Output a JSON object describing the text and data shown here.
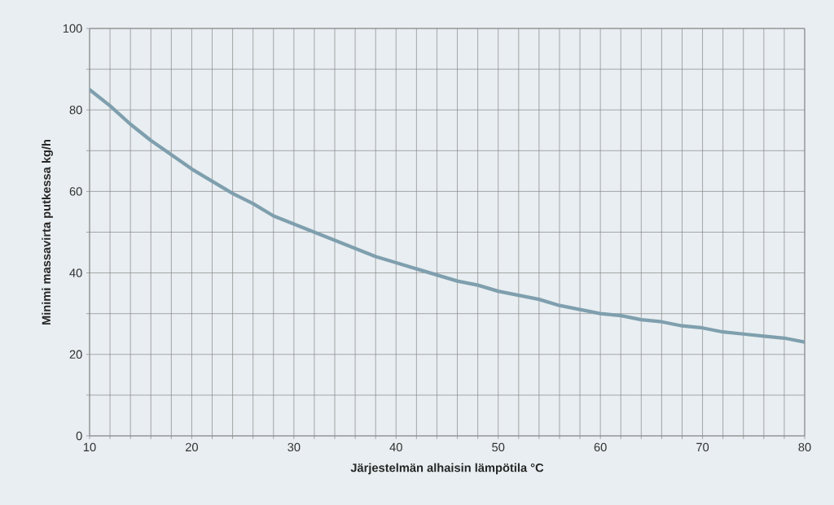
{
  "chart_data": {
    "type": "line",
    "xlabel": "Järjestelmän alhaisin lämpötila °C",
    "ylabel": "Minimi massavirta putkessa kg/h",
    "x": [
      10,
      12,
      14,
      16,
      18,
      20,
      22,
      24,
      26,
      28,
      30,
      32,
      34,
      36,
      38,
      40,
      42,
      44,
      46,
      48,
      50,
      52,
      54,
      56,
      58,
      60,
      62,
      64,
      66,
      68,
      70,
      72,
      74,
      76,
      78,
      80
    ],
    "series": [
      {
        "color": "#7f9fae",
        "values": [
          85,
          81,
          76.5,
          72.5,
          69,
          65.5,
          62.5,
          59.5,
          57,
          54,
          52,
          50,
          48,
          46,
          44,
          42.5,
          41,
          39.5,
          38,
          37,
          35.5,
          34.5,
          33.5,
          32,
          31,
          30,
          29.5,
          28.5,
          28,
          27,
          26.5,
          25.5,
          25,
          24.5,
          24,
          23
        ]
      }
    ],
    "xlim": [
      10,
      80
    ],
    "ylim": [
      0,
      100
    ],
    "xticks": [
      10,
      {
        "value": 12,
        "label": null
      },
      {
        "value": 14,
        "label": null
      },
      {
        "value": 16,
        "label": null
      },
      {
        "value": 18,
        "label": null
      },
      20,
      {
        "value": 22,
        "label": null
      },
      {
        "value": 24,
        "label": null
      },
      {
        "value": 26,
        "label": null
      },
      {
        "value": 28,
        "label": null
      },
      30,
      {
        "value": 32,
        "label": null
      },
      {
        "value": 34,
        "label": null
      },
      {
        "value": 36,
        "label": null
      },
      {
        "value": 38,
        "label": null
      },
      40,
      {
        "value": 42,
        "label": null
      },
      {
        "value": 44,
        "label": null
      },
      {
        "value": 46,
        "label": null
      },
      {
        "value": 48,
        "label": null
      },
      50,
      {
        "value": 52,
        "label": null
      },
      {
        "value": 54,
        "label": null
      },
      {
        "value": 56,
        "label": null
      },
      {
        "value": 58,
        "label": null
      },
      60,
      {
        "value": 62,
        "label": null
      },
      {
        "value": 64,
        "label": null
      },
      {
        "value": 66,
        "label": null
      },
      {
        "value": 68,
        "label": null
      },
      70,
      {
        "value": 72,
        "label": null
      },
      {
        "value": 74,
        "label": null
      },
      {
        "value": 76,
        "label": null
      },
      {
        "value": 78,
        "label": null
      },
      80
    ],
    "yticks": [
      0,
      {
        "value": 10,
        "label": null
      },
      20,
      {
        "value": 30,
        "label": null
      },
      40,
      {
        "value": 50,
        "label": null
      },
      60,
      {
        "value": 70,
        "label": null
      },
      80,
      {
        "value": 90,
        "label": null
      },
      100
    ],
    "grid": true,
    "marker": "none",
    "line_style": "solid"
  }
}
